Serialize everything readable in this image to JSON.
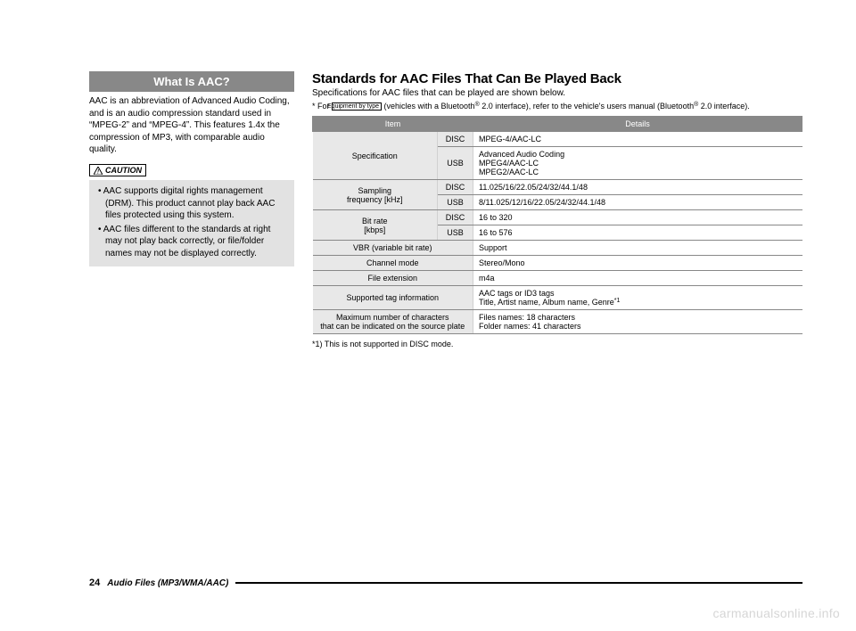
{
  "left": {
    "heading": "What Is AAC?",
    "body": "AAC is an abbreviation of Advanced Audio Coding, and is an audio compression standard used in “MPEG-2” and “MPEG-4”. This features 1.4x the compression of MP3, with comparable audio quality.",
    "caution_label": "CAUTION",
    "caution_items": [
      "AAC supports digital rights management (DRM). This product cannot play back AAC files protected using this system.",
      "AAC files different to the standards at right may not play back correctly, or file/folder names may not be displayed correctly."
    ]
  },
  "right": {
    "heading": "Standards for AAC Files That Can Be Played Back",
    "sub": "Specifications for AAC files that can be played are shown below.",
    "note_prefix": "* For ",
    "equip_tag": "Equipment by type",
    "note_suffix": " (vehicles with a Bluetooth",
    "note_sup1": "®",
    "note_mid": " 2.0 interface), refer to the vehicle's users manual (Bluetooth",
    "note_sup2": "®",
    "note_end": " 2.0 interface).",
    "table": {
      "head_item": "Item",
      "head_details": "Details",
      "rows": [
        {
          "label": "Specification",
          "sub": "DISC",
          "detail": "MPEG-4/AAC-LC",
          "rowspan": 2
        },
        {
          "sub": "USB",
          "detail": "Advanced Audio Coding\nMPEG4/AAC-LC\nMPEG2/AAC-LC"
        },
        {
          "label": "Sampling\nfrequency [kHz]",
          "sub": "DISC",
          "detail": "11.025/16/22.05/24/32/44.1/48",
          "rowspan": 2
        },
        {
          "sub": "USB",
          "detail": "8/11.025/12/16/22.05/24/32/44.1/48"
        },
        {
          "label": "Bit rate\n[kbps]",
          "sub": "DISC",
          "detail": "16 to 320",
          "rowspan": 2
        },
        {
          "sub": "USB",
          "detail": "16 to 576"
        },
        {
          "label": "VBR (variable bit rate)",
          "detail": "Support",
          "colspan": true
        },
        {
          "label": "Channel mode",
          "detail": "Stereo/Mono",
          "colspan": true
        },
        {
          "label": "File extension",
          "detail": "m4a",
          "colspan": true
        },
        {
          "label": "Supported tag information",
          "detail": "AAC tags or ID3 tags\nTitle, Artist name, Album name, Genre",
          "colspan": true,
          "sup": "*1"
        },
        {
          "label": "Maximum number of characters\nthat can be indicated on the source plate",
          "detail": "Files names: 18 characters\nFolder names: 41 characters",
          "colspan": true
        }
      ]
    },
    "footnote": "*1) This is not supported in DISC mode."
  },
  "footer": {
    "page": "24",
    "section": "Audio Files (MP3/WMA/AAC)"
  },
  "watermark": "carmanualsonline.info"
}
